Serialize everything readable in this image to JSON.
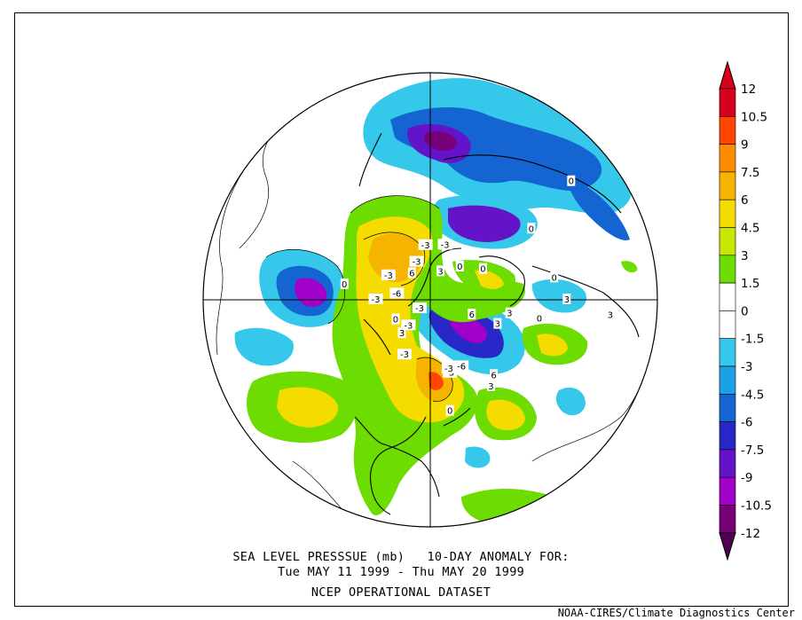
{
  "title": {
    "line1": "SEA LEVEL PRESSSUE (mb)   10-DAY ANOMALY FOR:",
    "line2": "Tue MAY 11 1999 - Thu MAY 20 1999",
    "line3": "NCEP OPERATIONAL DATASET"
  },
  "credit": "NOAA-CIRES/Climate Diagnostics Center",
  "legend": {
    "levels": [
      "12",
      "10.5",
      "9",
      "7.5",
      "6",
      "4.5",
      "3",
      "1.5",
      "0",
      "-1.5",
      "-3",
      "-4.5",
      "-6",
      "-7.5",
      "-9",
      "-10.5",
      "-12"
    ],
    "colors": [
      "#d6001c",
      "#ff4500",
      "#ff8c00",
      "#f5b400",
      "#f5dc00",
      "#c8e600",
      "#6ddc00",
      "#ffffff",
      "#ffffff",
      "#35c8ea",
      "#1ba0e6",
      "#1464d2",
      "#2828c8",
      "#6414c8",
      "#a000c8",
      "#780078"
    ]
  },
  "map_labels": [
    {
      "text": "-3",
      "lon": 195,
      "lat": 62
    },
    {
      "text": "-3",
      "lon": 175,
      "lat": 63
    },
    {
      "text": "-3",
      "lon": 160,
      "lat": 70
    },
    {
      "text": "-3",
      "lon": 120,
      "lat": 66
    },
    {
      "text": "-3",
      "lon": 90,
      "lat": 63
    },
    {
      "text": "-6",
      "lon": 100,
      "lat": 73
    },
    {
      "text": "-3",
      "lon": 25,
      "lat": 60
    },
    {
      "text": "-6",
      "lon": 335,
      "lat": 54
    },
    {
      "text": "-3",
      "lon": 345,
      "lat": 53
    },
    {
      "text": "-3",
      "lon": 40,
      "lat": 73
    },
    {
      "text": "-3",
      "lon": 50,
      "lat": 83
    },
    {
      "text": "0",
      "lon": 222,
      "lat": 68
    },
    {
      "text": "0",
      "lon": 240,
      "lat": 60
    },
    {
      "text": "3",
      "lon": 200,
      "lat": 75
    },
    {
      "text": "3",
      "lon": 40,
      "lat": 68
    },
    {
      "text": "0",
      "lon": 60,
      "lat": 70
    },
    {
      "text": "6",
      "lon": 145,
      "lat": 74
    },
    {
      "text": "6",
      "lon": 290,
      "lat": 68
    },
    {
      "text": "3",
      "lon": 290,
      "lat": 55
    },
    {
      "text": "3",
      "lon": 280,
      "lat": 51
    },
    {
      "text": "0",
      "lon": 260,
      "lat": 32
    },
    {
      "text": "3",
      "lon": 270,
      "lat": 28
    },
    {
      "text": "3",
      "lon": 275,
      "lat": 13
    },
    {
      "text": "6",
      "lon": 320,
      "lat": 43
    },
    {
      "text": "3",
      "lon": 325,
      "lat": 40
    },
    {
      "text": "-3",
      "lon": 345,
      "lat": 55
    },
    {
      "text": "0",
      "lon": 350,
      "lat": 37
    },
    {
      "text": "0",
      "lon": 230,
      "lat": 12
    },
    {
      "text": "0",
      "lon": 235,
      "lat": 33
    },
    {
      "text": "0",
      "lon": 280,
      "lat": 38
    },
    {
      "text": "0",
      "lon": 100,
      "lat": 48
    }
  ]
}
